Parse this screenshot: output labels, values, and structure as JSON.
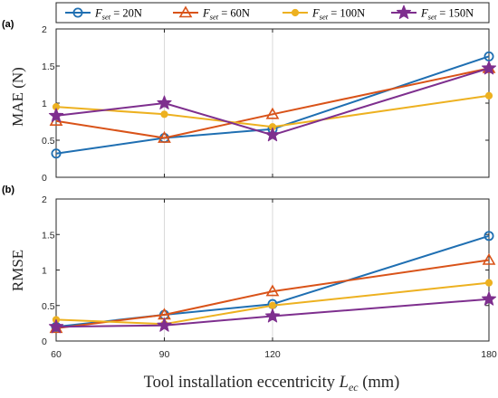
{
  "colors": {
    "F20": "#1f6fb2",
    "F60": "#d95319",
    "F100": "#edb120",
    "F150": "#7e2f8e",
    "grid": "#d9d9d9",
    "axis": "#262626"
  },
  "legend": {
    "entries": [
      {
        "F": "F",
        "sub": "set",
        "value": " = 20N",
        "marker": "circle",
        "color_key": "F20"
      },
      {
        "F": "F",
        "sub": "set",
        "value": " = 60N",
        "marker": "triangle",
        "color_key": "F60"
      },
      {
        "F": "F",
        "sub": "set",
        "value": " = 100N",
        "marker": "dot",
        "color_key": "F100"
      },
      {
        "F": "F",
        "sub": "set",
        "value": " = 150N",
        "marker": "star",
        "color_key": "F150"
      }
    ]
  },
  "xlabel": "Tool installation eccentricity",
  "xlabel_symbol": "L",
  "xlabel_sub": "ec",
  "xlabel_unit": " (mm)",
  "chart_data": [
    {
      "type": "line",
      "panel_label": "(a)",
      "ylabel": "MAE (N)",
      "x": [
        60,
        90,
        120,
        180
      ],
      "xticks": [
        "60",
        "90",
        "120",
        "180"
      ],
      "xlim": [
        60,
        180
      ],
      "ylim": [
        0,
        2
      ],
      "yticks": [
        "0",
        "0.5",
        "1",
        "1.5",
        "2"
      ],
      "grid": true,
      "legend_position": "top-outside",
      "series": [
        {
          "name": "F_set = 20N",
          "color_key": "F20",
          "marker": "circle",
          "values": [
            0.32,
            0.53,
            0.65,
            1.63
          ]
        },
        {
          "name": "F_set = 60N",
          "color_key": "F60",
          "marker": "triangle",
          "values": [
            0.76,
            0.53,
            0.85,
            1.47
          ]
        },
        {
          "name": "F_set = 100N",
          "color_key": "F100",
          "marker": "dot",
          "values": [
            0.95,
            0.85,
            0.68,
            1.1
          ]
        },
        {
          "name": "F_set = 150N",
          "color_key": "F150",
          "marker": "star",
          "values": [
            0.83,
            1.0,
            0.57,
            1.47
          ]
        }
      ]
    },
    {
      "type": "line",
      "panel_label": "(b)",
      "ylabel": "RMSE",
      "x": [
        60,
        90,
        120,
        180
      ],
      "xticks": [
        "60",
        "90",
        "120",
        "180"
      ],
      "xlim": [
        60,
        180
      ],
      "ylim": [
        0,
        2
      ],
      "yticks": [
        "0",
        "0.5",
        "1",
        "1.5",
        "2"
      ],
      "grid": true,
      "series": [
        {
          "name": "F_set = 20N",
          "color_key": "F20",
          "marker": "circle",
          "values": [
            0.2,
            0.37,
            0.52,
            1.48
          ]
        },
        {
          "name": "F_set = 60N",
          "color_key": "F60",
          "marker": "triangle",
          "values": [
            0.18,
            0.37,
            0.7,
            1.14
          ]
        },
        {
          "name": "F_set = 100N",
          "color_key": "F100",
          "marker": "dot",
          "values": [
            0.3,
            0.24,
            0.5,
            0.82
          ]
        },
        {
          "name": "F_set = 150N",
          "color_key": "F150",
          "marker": "star",
          "values": [
            0.2,
            0.22,
            0.35,
            0.59
          ]
        }
      ]
    }
  ]
}
